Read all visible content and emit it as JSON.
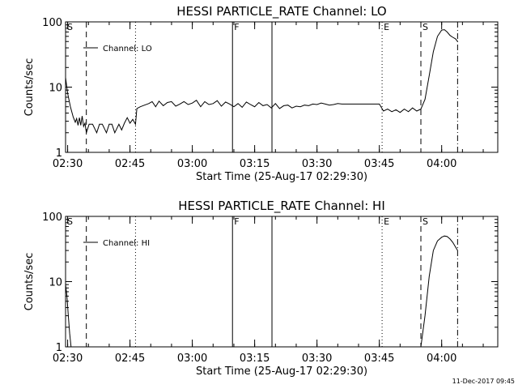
{
  "footer": {
    "date": "11-Dec-2017 09:45"
  },
  "chart_data": [
    {
      "type": "line",
      "title": "HESSI PARTICLE_RATE Channel: LO",
      "xlabel": "Start Time (25-Aug-17 02:29:30)",
      "ylabel": "Counts/sec",
      "yscale": "log",
      "ylim": [
        1,
        100
      ],
      "xlim": [
        "02:29:30",
        "04:13:30"
      ],
      "yticks": [
        1,
        10,
        100
      ],
      "xticks": [
        "02:30",
        "02:45",
        "03:00",
        "03:15",
        "03:30",
        "03:45",
        "04:00"
      ],
      "legend": {
        "label": "Channel: LO",
        "placement": "top-left"
      },
      "markers": [
        {
          "label": "S",
          "time": "02:29:30",
          "style": "dashed"
        },
        {
          "label": "",
          "time": "02:34:30",
          "style": "dashed"
        },
        {
          "label": "",
          "time": "02:46:20",
          "style": "dotted"
        },
        {
          "label": "F",
          "time": "03:09:40",
          "style": "solid"
        },
        {
          "label": "",
          "time": "03:19:10",
          "style": "solid"
        },
        {
          "label": "E",
          "time": "03:45:40",
          "style": "dotted"
        },
        {
          "label": "S",
          "time": "03:55:00",
          "style": "dashed"
        },
        {
          "label": "",
          "time": "04:03:50",
          "style": "dash-dot"
        }
      ],
      "series": [
        {
          "x": [
            "02:29:30",
            "02:30:00",
            "02:30:40",
            "02:31:20",
            "02:31:50",
            "02:32:10",
            "02:32:30",
            "02:32:50",
            "02:33:10",
            "02:33:30",
            "02:33:50",
            "02:34:10",
            "02:34:30",
            "02:35:10",
            "02:36:00",
            "02:37:00",
            "02:37:40",
            "02:38:20",
            "02:39:20",
            "02:40:00",
            "02:40:40",
            "02:41:20",
            "02:42:20",
            "02:43:00",
            "02:43:40",
            "02:44:20",
            "02:45:00",
            "02:45:40",
            "02:46:20",
            "02:46:40",
            "02:47:30",
            "02:48:30",
            "02:49:30",
            "02:50:20",
            "02:51:10",
            "02:52:00",
            "02:53:00",
            "02:54:00",
            "02:55:00",
            "02:56:00",
            "02:57:00",
            "02:58:00",
            "02:59:00",
            "03:00:00",
            "03:01:00",
            "03:02:00",
            "03:03:00",
            "03:04:00",
            "03:05:00",
            "03:06:00",
            "03:07:00",
            "03:08:00",
            "03:09:00",
            "03:10:00",
            "03:11:00",
            "03:12:00",
            "03:13:00",
            "03:14:00",
            "03:15:00",
            "03:16:00",
            "03:17:00",
            "03:18:00",
            "03:19:00",
            "03:20:00",
            "03:21:00",
            "03:22:00",
            "03:23:00",
            "03:24:00",
            "03:25:00",
            "03:26:00",
            "03:27:00",
            "03:28:00",
            "03:29:00",
            "03:30:00",
            "03:31:00",
            "03:32:00",
            "03:33:00",
            "03:34:00",
            "03:35:00",
            "03:36:00",
            "03:37:00",
            "03:38:00",
            "03:39:00",
            "03:40:00",
            "03:41:00",
            "03:42:00",
            "03:43:00",
            "03:44:00",
            "03:45:00",
            "03:46:00",
            "03:47:00",
            "03:48:00",
            "03:49:00",
            "03:50:00",
            "03:51:00",
            "03:52:00",
            "03:53:00",
            "03:54:00",
            "03:55:00",
            "03:56:00",
            "03:57:00",
            "03:58:00",
            "03:59:00",
            "04:00:00",
            "04:00:40",
            "04:01:20",
            "04:02:00",
            "04:02:40",
            "04:03:20",
            "04:03:50"
          ],
          "y": [
            14,
            8,
            5,
            3.5,
            2.9,
            3.3,
            2.6,
            3.4,
            2.6,
            3.6,
            2.5,
            2.8,
            2,
            2.7,
            2.7,
            2,
            2.7,
            2.7,
            2,
            2.7,
            2.7,
            2,
            2.7,
            2.2,
            2.8,
            3.4,
            2.8,
            3.2,
            2.7,
            4.7,
            5,
            5.3,
            5.6,
            6,
            5,
            6.1,
            5.2,
            5.8,
            6,
            5.1,
            5.5,
            6,
            5.4,
            5.7,
            6.3,
            5,
            6,
            5.4,
            5.6,
            6.2,
            5.1,
            5.9,
            5.5,
            5,
            5.6,
            4.9,
            5.9,
            5.4,
            5,
            5.8,
            5.2,
            5.4,
            4.8,
            5.6,
            4.7,
            5.2,
            5.3,
            4.8,
            5.1,
            5,
            5.3,
            5.2,
            5.5,
            5.4,
            5.7,
            5.5,
            5.3,
            5.4,
            5.6,
            5.5,
            5.5,
            5.5,
            5.5,
            5.5,
            5.5,
            5.5,
            5.5,
            5.5,
            5.5,
            4.3,
            4.6,
            4.2,
            4.5,
            4.1,
            4.6,
            4.2,
            4.8,
            4.3,
            4.6,
            6.5,
            15,
            35,
            60,
            75,
            76,
            70,
            62,
            58,
            55,
            50
          ]
        }
      ]
    },
    {
      "type": "line",
      "title": "HESSI PARTICLE_RATE Channel: HI",
      "xlabel": "Start Time (25-Aug-17 02:29:30)",
      "ylabel": "Counts/sec",
      "yscale": "log",
      "ylim": [
        1,
        100
      ],
      "xlim": [
        "02:29:30",
        "04:13:30"
      ],
      "yticks": [
        1,
        10,
        100
      ],
      "xticks": [
        "02:30",
        "02:45",
        "03:00",
        "03:15",
        "03:30",
        "03:45",
        "04:00"
      ],
      "legend": {
        "label": "Channel: HI",
        "placement": "top-left"
      },
      "markers": [
        {
          "label": "S",
          "time": "02:29:30",
          "style": "dashed"
        },
        {
          "label": "",
          "time": "02:34:30",
          "style": "dashed"
        },
        {
          "label": "",
          "time": "02:46:20",
          "style": "dotted"
        },
        {
          "label": "F",
          "time": "03:09:40",
          "style": "solid"
        },
        {
          "label": "",
          "time": "03:19:10",
          "style": "solid"
        },
        {
          "label": "E",
          "time": "03:45:40",
          "style": "dotted"
        },
        {
          "label": "S",
          "time": "03:55:00",
          "style": "dashed"
        },
        {
          "label": "",
          "time": "04:03:50",
          "style": "dash-dot"
        }
      ],
      "series": [
        {
          "x": [
            "02:29:30",
            "02:29:50",
            "02:30:10",
            "02:30:30",
            "02:30:50",
            "03:55:00",
            "03:56:00",
            "03:57:00",
            "03:58:00",
            "03:59:00",
            "04:00:00",
            "04:00:40",
            "04:01:20",
            "04:02:00",
            "04:02:40",
            "04:03:20",
            "04:03:50"
          ],
          "y": [
            9,
            6,
            3,
            1.6,
            1,
            1,
            3,
            12,
            30,
            42,
            48,
            50,
            49,
            45,
            40,
            34,
            30
          ]
        }
      ]
    }
  ]
}
